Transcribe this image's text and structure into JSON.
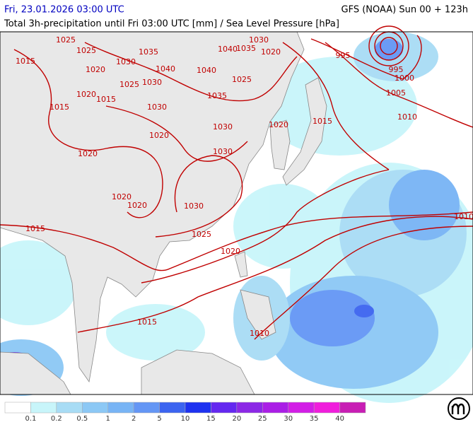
{
  "header": {
    "date": "Fri, 23.01.2026 03:00 UTC",
    "model": "GFS (NOAA) Sun 00 + 123h",
    "subtitle": "Total 3h-precipitation until Fri 03:00 UTC [mm] / Sea Level Pressure [hPa]"
  },
  "isobar_labels": [
    "1025",
    "1025",
    "1035",
    "1030",
    "1040",
    "1035",
    "1020",
    "995",
    "995",
    "1000",
    "1005",
    "1010",
    "1015",
    "1020",
    "1030",
    "1020",
    "1015",
    "1040",
    "1040",
    "1025",
    "1025",
    "1030",
    "1035",
    "1015",
    "1030",
    "1020",
    "1030",
    "1020",
    "1015",
    "1020",
    "1030",
    "1020",
    "1020",
    "1030",
    "1025",
    "1010",
    "1015",
    "1020",
    "1015",
    "1010"
  ],
  "legend": {
    "colors": [
      "#ffffff",
      "#c8f5fa",
      "#a8dcf5",
      "#8cc8f5",
      "#78b4f5",
      "#6496f5",
      "#3c64f0",
      "#1e32f0",
      "#6428f0",
      "#8c28e6",
      "#aa1ee6",
      "#d21ee6",
      "#f01edc",
      "#c81eb4"
    ],
    "values": [
      0.1,
      0.2,
      0.5,
      1,
      2,
      5,
      10,
      15,
      20,
      25,
      30,
      35,
      40
    ]
  }
}
